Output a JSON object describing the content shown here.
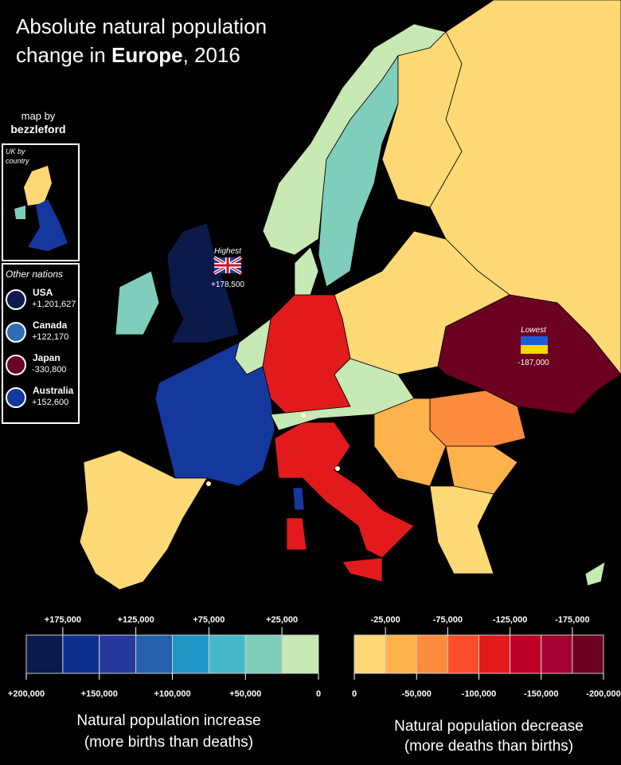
{
  "title": {
    "line1": "Absolute natural population",
    "line2_before": "change in ",
    "line2_bold": "Europe",
    "line2_after": ", 2016"
  },
  "credit": {
    "line1": "map by",
    "line2": "bezzleford"
  },
  "inset": {
    "label": [
      "UK by",
      "country"
    ]
  },
  "other_nations": {
    "heading": "Other nations",
    "items": [
      {
        "name": "USA",
        "label": "+1,201,627",
        "color": "#0b1a4a"
      },
      {
        "name": "Canada",
        "label": "+122,170",
        "color": "#2e6fb4"
      },
      {
        "name": "Japan",
        "label": "-330,800",
        "color": "#6b0021"
      },
      {
        "name": "Australia",
        "label": "+152,600",
        "color": "#14389e"
      }
    ]
  },
  "highest": {
    "label": "Highest",
    "value": "+178,500"
  },
  "lowest": {
    "label": "Lowest",
    "value": "-187,000"
  },
  "legend": {
    "increase": {
      "range": [
        200000,
        0
      ],
      "colors": [
        "#0b1a4a",
        "#0e2f8e",
        "#26379c",
        "#2460ab",
        "#1f95c4",
        "#46b9c9",
        "#7fcdbb",
        "#c7e9b4"
      ],
      "top_ticks": [
        {
          "value": 175000,
          "label": "+175,000"
        },
        {
          "value": 125000,
          "label": "+125,000"
        },
        {
          "value": 75000,
          "label": "+75,000"
        },
        {
          "value": 25000,
          "label": "+25,000"
        }
      ],
      "bottom_ticks": [
        {
          "value": 200000,
          "label": "+200,000"
        },
        {
          "value": 150000,
          "label": "+150,000"
        },
        {
          "value": 100000,
          "label": "+100,000"
        },
        {
          "value": 50000,
          "label": "+50,000"
        },
        0
      ],
      "caption": [
        "Natural population increase",
        "(more births than deaths)"
      ]
    },
    "decrease": {
      "range": [
        0,
        -200000
      ],
      "colors": [
        "#fed976",
        "#feb24c",
        "#fd8d3c",
        "#fc4e2a",
        "#e31a1c",
        "#bd0026",
        "#a50032",
        "#6b0021"
      ],
      "top_ticks": [
        {
          "value": -25000,
          "label": "-25,000"
        },
        {
          "value": -75000,
          "label": "-75,000"
        },
        {
          "value": -125000,
          "label": "-125,000"
        },
        {
          "value": -175000,
          "label": "-175,000"
        }
      ],
      "bottom_ticks": [
        0,
        {
          "value": -50000,
          "label": "-50,000"
        },
        {
          "value": -100000,
          "label": "-100,000"
        },
        {
          "value": -150000,
          "label": "-150,000"
        },
        {
          "value": -200000,
          "label": "-200,000"
        }
      ],
      "caption": [
        "Natural population decrease",
        "(more deaths than births)"
      ]
    }
  }
}
